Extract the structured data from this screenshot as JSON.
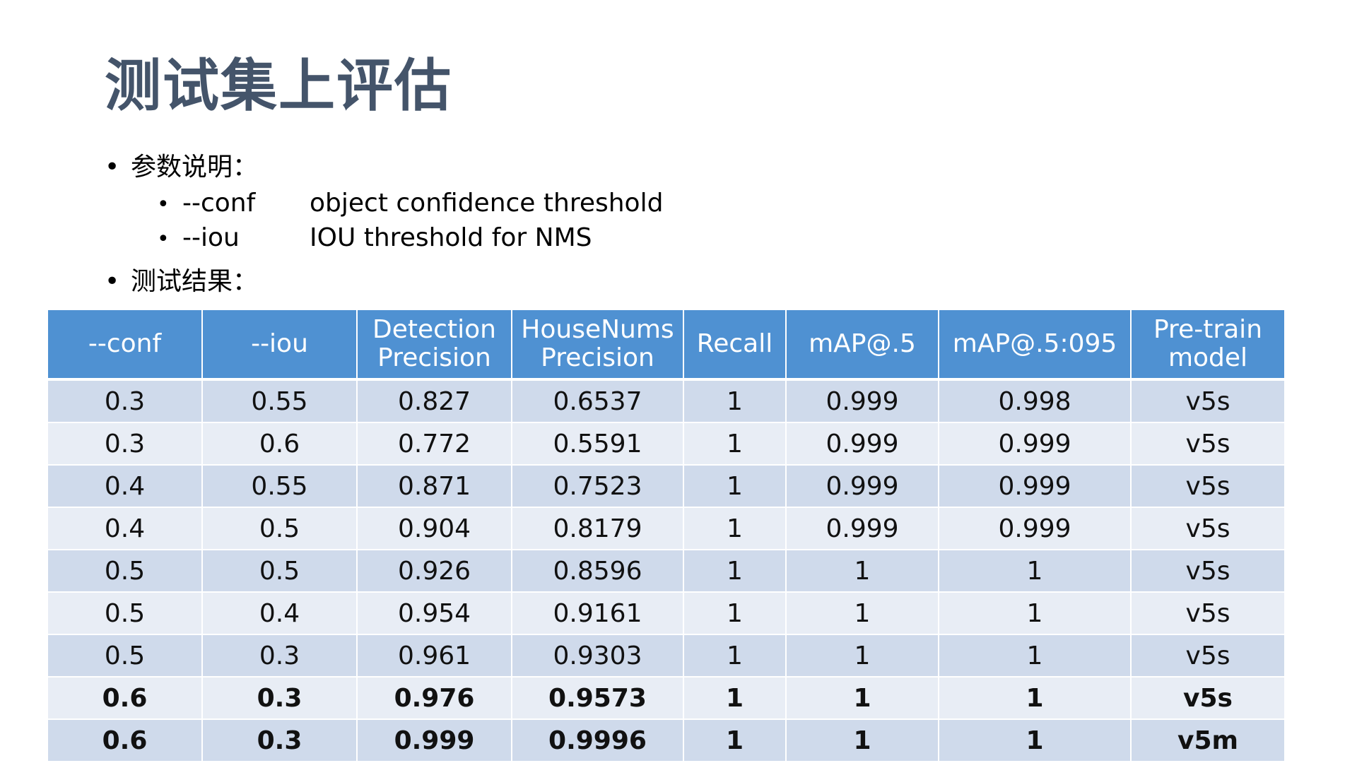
{
  "slide": {
    "title": "测试集上评估",
    "bullet_params": "参数说明：",
    "params": [
      {
        "name": "--conf",
        "desc": "object confidence threshold"
      },
      {
        "name": "--iou",
        "desc": "IOU threshold for NMS"
      }
    ],
    "bullet_results": "测试结果："
  },
  "table": {
    "headers": [
      [
        "--conf"
      ],
      [
        "--iou"
      ],
      [
        "Detection",
        "Precision"
      ],
      [
        "HouseNums",
        "Precision"
      ],
      [
        "Recall"
      ],
      [
        "mAP@.5"
      ],
      [
        "mAP@.5:095"
      ],
      [
        "Pre-train",
        "model"
      ]
    ],
    "rows": [
      {
        "cells": [
          "0.3",
          "0.55",
          "0.827",
          "0.6537",
          "1",
          "0.999",
          "0.998",
          "v5s"
        ],
        "bold": false
      },
      {
        "cells": [
          "0.3",
          "0.6",
          "0.772",
          "0.5591",
          "1",
          "0.999",
          "0.999",
          "v5s"
        ],
        "bold": false
      },
      {
        "cells": [
          "0.4",
          "0.55",
          "0.871",
          "0.7523",
          "1",
          "0.999",
          "0.999",
          "v5s"
        ],
        "bold": false
      },
      {
        "cells": [
          "0.4",
          "0.5",
          "0.904",
          "0.8179",
          "1",
          "0.999",
          "0.999",
          "v5s"
        ],
        "bold": false
      },
      {
        "cells": [
          "0.5",
          "0.5",
          "0.926",
          "0.8596",
          "1",
          "1",
          "1",
          "v5s"
        ],
        "bold": false
      },
      {
        "cells": [
          "0.5",
          "0.4",
          "0.954",
          "0.9161",
          "1",
          "1",
          "1",
          "v5s"
        ],
        "bold": false
      },
      {
        "cells": [
          "0.5",
          "0.3",
          "0.961",
          "0.9303",
          "1",
          "1",
          "1",
          "v5s"
        ],
        "bold": false
      },
      {
        "cells": [
          "0.6",
          "0.3",
          "0.976",
          "0.9573",
          "1",
          "1",
          "1",
          "v5s"
        ],
        "bold": true
      },
      {
        "cells": [
          "0.6",
          "0.3",
          "0.999",
          "0.9996",
          "1",
          "1",
          "1",
          "v5m"
        ],
        "bold": true
      }
    ]
  },
  "colors": {
    "title": "#44546a",
    "header_bg": "#4f91d2",
    "row_odd": "#cfdaeb",
    "row_even": "#e8edf5"
  }
}
